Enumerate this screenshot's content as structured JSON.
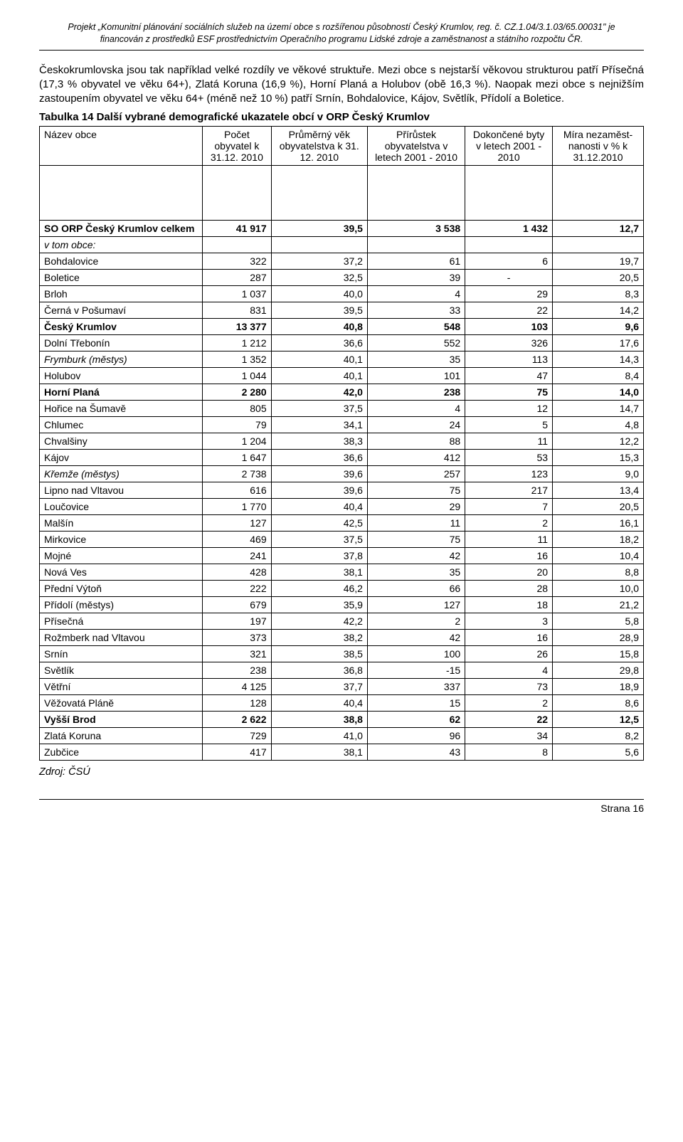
{
  "header": {
    "line1": "Projekt „Komunitní plánování sociálních služeb na území obce s rozšířenou působností Český Krumlov, reg. č. CZ.1.04/3.1.03/65.00031\" je",
    "line2": "financován z prostředků ESF prostřednictvím Operačního programu Lidské zdroje a zaměstnanost a státního rozpočtu ČR."
  },
  "paragraph": "Českokrumlovska jsou tak například velké rozdíly ve věkové struktuře. Mezi obce s nejstarší věkovou strukturou patří Přísečná (17,3 % obyvatel ve věku 64+), Zlatá Koruna (16,9 %), Horní Planá a Holubov (obě 16,3 %). Naopak mezi obce s nejnižším zastoupením obyvatel ve věku 64+ (méně než 10 %) patří Srnín, Bohdalovice, Kájov, Světlík, Přídolí a Boletice.",
  "table_title": "Tabulka 14   Další vybrané demografické ukazatele obcí v ORP Český Krumlov",
  "columns": [
    "Název obce",
    "Počet obyvatel k 31.12. 2010",
    "Průměrný věk obyvatelstva k 31. 12. 2010",
    "Přírůstek obyvatelstva v letech 2001 - 2010",
    "Dokončené byty v letech 2001 - 2010",
    "Míra nezaměst-nanosti v % k 31.12.2010"
  ],
  "total_row": {
    "name": "SO ORP Český Krumlov celkem",
    "values": [
      "41 917",
      "39,5",
      "3 538",
      "1 432",
      "12,7"
    ]
  },
  "subheader": "v tom obce:",
  "rows": [
    {
      "name": "Bohdalovice",
      "bold": false,
      "italic": false,
      "values": [
        "322",
        "37,2",
        "61",
        "6",
        "19,7"
      ]
    },
    {
      "name": "Boletice",
      "bold": false,
      "italic": false,
      "values": [
        "287",
        "32,5",
        "39",
        "-",
        "20,5"
      ]
    },
    {
      "name": "Brloh",
      "bold": false,
      "italic": false,
      "values": [
        "1 037",
        "40,0",
        "4",
        "29",
        "8,3"
      ]
    },
    {
      "name": "Černá v Pošumaví",
      "bold": false,
      "italic": false,
      "values": [
        "831",
        "39,5",
        "33",
        "22",
        "14,2"
      ]
    },
    {
      "name": "Český Krumlov",
      "bold": true,
      "italic": false,
      "values": [
        "13 377",
        "40,8",
        "548",
        "103",
        "9,6"
      ]
    },
    {
      "name": "Dolní Třebonín",
      "bold": false,
      "italic": false,
      "values": [
        "1 212",
        "36,6",
        "552",
        "326",
        "17,6"
      ]
    },
    {
      "name": "Frymburk (městys)",
      "bold": false,
      "italic": true,
      "values": [
        "1 352",
        "40,1",
        "35",
        "113",
        "14,3"
      ]
    },
    {
      "name": "Holubov",
      "bold": false,
      "italic": false,
      "values": [
        "1 044",
        "40,1",
        "101",
        "47",
        "8,4"
      ]
    },
    {
      "name": "Horní Planá",
      "bold": true,
      "italic": false,
      "values": [
        "2 280",
        "42,0",
        "238",
        "75",
        "14,0"
      ]
    },
    {
      "name": "Hořice na Šumavě",
      "bold": false,
      "italic": false,
      "values": [
        "805",
        "37,5",
        "4",
        "12",
        "14,7"
      ]
    },
    {
      "name": "Chlumec",
      "bold": false,
      "italic": false,
      "values": [
        "79",
        "34,1",
        "24",
        "5",
        "4,8"
      ]
    },
    {
      "name": "Chvalšiny",
      "bold": false,
      "italic": false,
      "values": [
        "1 204",
        "38,3",
        "88",
        "11",
        "12,2"
      ]
    },
    {
      "name": "Kájov",
      "bold": false,
      "italic": false,
      "values": [
        "1 647",
        "36,6",
        "412",
        "53",
        "15,3"
      ]
    },
    {
      "name": "Křemže (městys)",
      "bold": false,
      "italic": true,
      "values": [
        "2 738",
        "39,6",
        "257",
        "123",
        "9,0"
      ]
    },
    {
      "name": "Lipno nad Vltavou",
      "bold": false,
      "italic": false,
      "values": [
        "616",
        "39,6",
        "75",
        "217",
        "13,4"
      ]
    },
    {
      "name": "Loučovice",
      "bold": false,
      "italic": false,
      "values": [
        "1 770",
        "40,4",
        "29",
        "7",
        "20,5"
      ]
    },
    {
      "name": "Malšín",
      "bold": false,
      "italic": false,
      "values": [
        "127",
        "42,5",
        "11",
        "2",
        "16,1"
      ]
    },
    {
      "name": "Mirkovice",
      "bold": false,
      "italic": false,
      "values": [
        "469",
        "37,5",
        "75",
        "11",
        "18,2"
      ]
    },
    {
      "name": "Mojné",
      "bold": false,
      "italic": false,
      "values": [
        "241",
        "37,8",
        "42",
        "16",
        "10,4"
      ]
    },
    {
      "name": "Nová Ves",
      "bold": false,
      "italic": false,
      "values": [
        "428",
        "38,1",
        "35",
        "20",
        "8,8"
      ]
    },
    {
      "name": "Přední Výtoň",
      "bold": false,
      "italic": false,
      "values": [
        "222",
        "46,2",
        "66",
        "28",
        "10,0"
      ]
    },
    {
      "name": "Přídolí (městys)",
      "bold": false,
      "italic": false,
      "values": [
        "679",
        "35,9",
        "127",
        "18",
        "21,2"
      ]
    },
    {
      "name": "Přísečná",
      "bold": false,
      "italic": false,
      "values": [
        "197",
        "42,2",
        "2",
        "3",
        "5,8"
      ]
    },
    {
      "name": "Rožmberk nad Vltavou",
      "bold": false,
      "italic": false,
      "values": [
        "373",
        "38,2",
        "42",
        "16",
        "28,9"
      ]
    },
    {
      "name": "Srnín",
      "bold": false,
      "italic": false,
      "values": [
        "321",
        "38,5",
        "100",
        "26",
        "15,8"
      ]
    },
    {
      "name": "Světlík",
      "bold": false,
      "italic": false,
      "values": [
        "238",
        "36,8",
        "-15",
        "4",
        "29,8"
      ]
    },
    {
      "name": "Větřní",
      "bold": false,
      "italic": false,
      "values": [
        "4 125",
        "37,7",
        "337",
        "73",
        "18,9"
      ]
    },
    {
      "name": "Věžovatá Pláně",
      "bold": false,
      "italic": false,
      "values": [
        "128",
        "40,4",
        "15",
        "2",
        "8,6"
      ]
    },
    {
      "name": "Vyšší Brod",
      "bold": true,
      "italic": false,
      "values": [
        "2 622",
        "38,8",
        "62",
        "22",
        "12,5"
      ]
    },
    {
      "name": "Zlatá Koruna",
      "bold": false,
      "italic": false,
      "values": [
        "729",
        "41,0",
        "96",
        "34",
        "8,2"
      ]
    },
    {
      "name": "Zubčice",
      "bold": false,
      "italic": false,
      "values": [
        "417",
        "38,1",
        "43",
        "8",
        "5,6"
      ]
    }
  ],
  "source": "Zdroj: ČSÚ",
  "footer": "Strana 16"
}
